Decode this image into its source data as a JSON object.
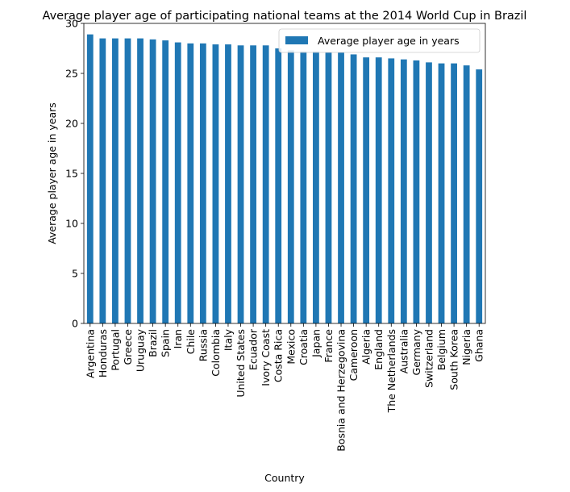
{
  "chart_data": {
    "type": "bar",
    "title": "Average player age of participating national teams at the 2014 World Cup in Brazil",
    "xlabel": "Country",
    "ylabel": "Average player age in years",
    "ylim": [
      0,
      30
    ],
    "yticks": [
      0,
      5,
      10,
      15,
      20,
      25,
      30
    ],
    "grid": false,
    "legend_position": "top-right",
    "color": "#1f77b4",
    "categories": [
      "Argentina",
      "Honduras",
      "Portugal",
      "Greece",
      "Uruguay",
      "Brazil",
      "Spain",
      "Iran",
      "Chile",
      "Russia",
      "Colombia",
      "Italy",
      "United States",
      "Ecuador",
      "Ivory Coast",
      "Costa Rica",
      "Mexico",
      "Croatia",
      "Japan",
      "France",
      "Bosnia and Herzegovina",
      "Cameroon",
      "Algeria",
      "England",
      "The Netherlands",
      "Australia",
      "Germany",
      "Switzerland",
      "Belgium",
      "South Korea",
      "Nigeria",
      "Ghana"
    ],
    "series": [
      {
        "name": "Average player age in years",
        "values": [
          28.9,
          28.5,
          28.5,
          28.5,
          28.5,
          28.4,
          28.3,
          28.1,
          28.0,
          28.0,
          27.9,
          27.9,
          27.8,
          27.8,
          27.8,
          27.5,
          27.3,
          27.2,
          27.2,
          27.1,
          27.1,
          26.9,
          26.6,
          26.6,
          26.5,
          26.4,
          26.3,
          26.1,
          26.0,
          26.0,
          25.8,
          25.4
        ]
      }
    ]
  }
}
